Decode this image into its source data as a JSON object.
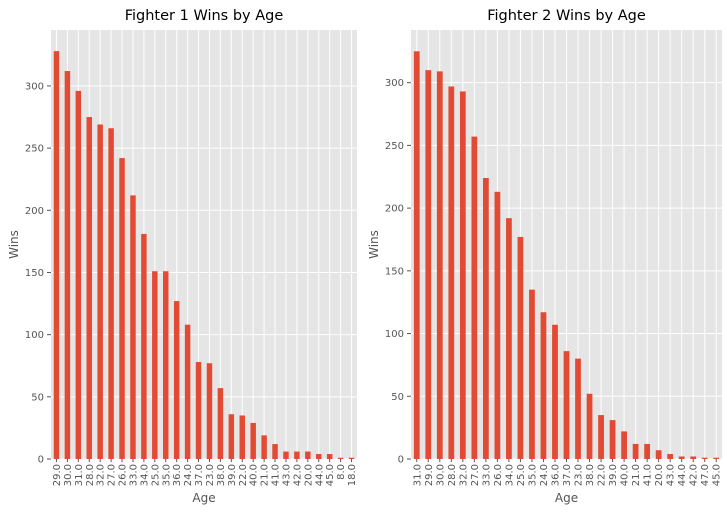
{
  "colors": {
    "plot_bg": "#E5E5E5",
    "grid": "#FFFFFF",
    "bar": "#E24A33",
    "tick_text": "#555555",
    "label_text": "#555555",
    "title_text": "#000000"
  },
  "chart_data": [
    {
      "type": "bar",
      "title": "Fighter 1 Wins by Age",
      "xlabel": "Age",
      "ylabel": "Wins",
      "ylim": [
        0,
        345
      ],
      "yticks": [
        0,
        50,
        100,
        150,
        200,
        250,
        300
      ],
      "grid": true,
      "categories": [
        "29.0",
        "30.0",
        "31.0",
        "28.0",
        "32.0",
        "27.0",
        "26.0",
        "33.0",
        "34.0",
        "25.0",
        "35.0",
        "36.0",
        "24.0",
        "37.0",
        "23.0",
        "38.0",
        "39.0",
        "22.0",
        "40.0",
        "21.0",
        "41.0",
        "43.0",
        "42.0",
        "20.0",
        "44.0",
        "45.0",
        "8.0",
        "18.0"
      ],
      "values": [
        328,
        312,
        296,
        275,
        269,
        266,
        242,
        212,
        181,
        151,
        151,
        127,
        108,
        78,
        77,
        57,
        36,
        35,
        29,
        19,
        12,
        6,
        6,
        6,
        4,
        4,
        1,
        1
      ]
    },
    {
      "type": "bar",
      "title": "Fighter 2 Wins by Age",
      "xlabel": "Age",
      "ylabel": "Wins",
      "ylim": [
        0,
        342
      ],
      "yticks": [
        0,
        50,
        100,
        150,
        200,
        250,
        300
      ],
      "grid": true,
      "categories": [
        "31.0",
        "29.0",
        "30.0",
        "28.0",
        "32.0",
        "27.0",
        "33.0",
        "26.0",
        "34.0",
        "25.0",
        "35.0",
        "24.0",
        "36.0",
        "37.0",
        "23.0",
        "38.0",
        "22.0",
        "39.0",
        "40.0",
        "21.0",
        "41.0",
        "20.0",
        "43.0",
        "44.0",
        "42.0",
        "47.0",
        "45.0"
      ],
      "values": [
        325,
        310,
        309,
        297,
        293,
        257,
        224,
        213,
        192,
        177,
        135,
        117,
        107,
        86,
        80,
        52,
        35,
        31,
        22,
        12,
        12,
        7,
        4,
        2,
        2,
        1,
        1
      ]
    }
  ]
}
